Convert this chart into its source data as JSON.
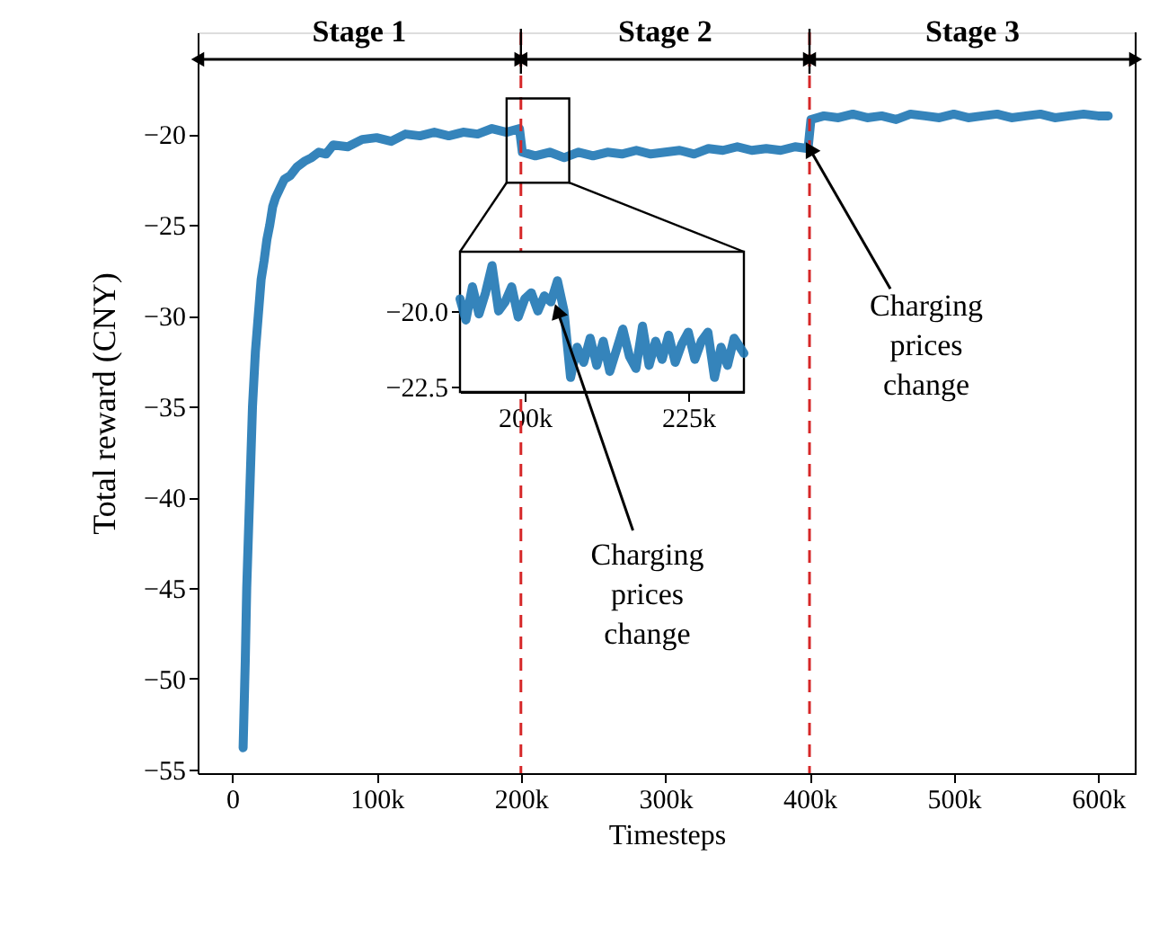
{
  "chart_data": [
    {
      "type": "line",
      "xlabel": "Timesteps",
      "ylabel": "Total reward (CNY)",
      "color": "#1f77b4",
      "line_style": "solid",
      "grid": false,
      "x": [
        7500,
        9000,
        10000,
        12000,
        14000,
        16000,
        18000,
        20000,
        22000,
        24000,
        26000,
        28000,
        30000,
        33000,
        36000,
        40000,
        45000,
        50000,
        55000,
        60000,
        65000,
        70000,
        80000,
        90000,
        100000,
        110000,
        120000,
        130000,
        140000,
        150000,
        160000,
        170000,
        180000,
        190000,
        199000,
        201000,
        210000,
        220000,
        230000,
        240000,
        250000,
        260000,
        270000,
        280000,
        290000,
        300000,
        310000,
        320000,
        330000,
        340000,
        350000,
        360000,
        370000,
        380000,
        390000,
        399000,
        401000,
        410000,
        420000,
        430000,
        440000,
        450000,
        460000,
        470000,
        480000,
        490000,
        500000,
        510000,
        520000,
        530000,
        540000,
        550000,
        560000,
        570000,
        580000,
        590000,
        600000,
        607000
      ],
      "values": [
        -53.8,
        -49,
        -45,
        -40,
        -35,
        -32,
        -30,
        -28,
        -27,
        -25.8,
        -25,
        -24,
        -23.5,
        -23,
        -22.5,
        -22.3,
        -21.8,
        -21.5,
        -21.3,
        -21,
        -21.1,
        -20.6,
        -20.7,
        -20.3,
        -20.2,
        -20.4,
        -20.0,
        -20.1,
        -19.9,
        -20.1,
        -19.9,
        -20.0,
        -19.7,
        -19.9,
        -19.7,
        -21.0,
        -21.2,
        -21.0,
        -21.3,
        -21.0,
        -21.2,
        -21.0,
        -21.1,
        -20.9,
        -21.1,
        -21.0,
        -20.9,
        -21.1,
        -20.8,
        -20.9,
        -20.7,
        -20.9,
        -20.8,
        -20.9,
        -20.7,
        -20.8,
        -19.2,
        -19.0,
        -19.1,
        -18.9,
        -19.1,
        -19.0,
        -19.2,
        -18.9,
        -19.0,
        -19.1,
        -18.9,
        -19.1,
        -19.0,
        -18.9,
        -19.1,
        -19.0,
        -18.9,
        -19.1,
        -19.0,
        -18.9,
        -19.0,
        -19.0
      ],
      "xlim": [
        -24000,
        626000
      ],
      "ylim": [
        -55.2,
        -14.4
      ],
      "xticks": [
        0,
        {
          "value": 100000,
          "label": "100k"
        },
        {
          "value": 200000,
          "label": "200k"
        },
        {
          "value": 300000,
          "label": "300k"
        },
        {
          "value": 400000,
          "label": "400k"
        },
        {
          "value": 500000,
          "label": "500k"
        },
        {
          "value": 600000,
          "label": "600k"
        }
      ],
      "yticks": [
        -55,
        -50,
        -45,
        -40,
        -35,
        -30,
        -25,
        -20
      ],
      "ref_lines": [
        {
          "axis": "x",
          "value": 200000,
          "color": "#d62728",
          "line_style": "dashed"
        },
        {
          "axis": "x",
          "value": 400000,
          "color": "#d62728",
          "line_style": "dashed"
        }
      ],
      "annotations": [
        "Stage 1",
        "Stage 2",
        "Stage 3",
        {
          "text": "Charging prices change",
          "x": 400000,
          "y": -20.8
        }
      ]
    },
    {
      "type": "line",
      "color": "#1f77b4",
      "line_style": "solid",
      "grid": false,
      "x": [
        190100,
        191000,
        192000,
        193000,
        194000,
        195000,
        196000,
        197000,
        198000,
        199000,
        200000,
        201000,
        202000,
        203000,
        204000,
        205000,
        206000,
        207000,
        208000,
        209000,
        210000,
        211000,
        212000,
        213000,
        214000,
        215000,
        216000,
        217000,
        218000,
        219000,
        220000,
        221000,
        222000,
        223000,
        224000,
        225000,
        226000,
        227000,
        228000,
        229000,
        230000,
        231000,
        232000,
        233500
      ],
      "values": [
        -19.6,
        -20.3,
        -19.2,
        -20.1,
        -19.4,
        -18.5,
        -20.0,
        -19.7,
        -19.2,
        -20.2,
        -19.6,
        -19.4,
        -20.0,
        -19.5,
        -19.7,
        -19.0,
        -20.0,
        -22.2,
        -21.2,
        -21.7,
        -20.9,
        -21.8,
        -21.0,
        -22.0,
        -21.3,
        -20.6,
        -21.5,
        -21.9,
        -20.5,
        -21.8,
        -21.0,
        -21.6,
        -20.8,
        -21.7,
        -21.1,
        -20.7,
        -21.6,
        -21.0,
        -20.7,
        -22.2,
        -21.2,
        -21.8,
        -20.9,
        -21.4
      ],
      "xlim": [
        190100,
        233500
      ],
      "ylim": [
        -22.68,
        -18.04
      ],
      "xticks": [
        {
          "value": 200000,
          "label": "200k"
        },
        {
          "value": 225000,
          "label": "225k"
        }
      ],
      "yticks": [
        {
          "value": -20,
          "label": "−20.0"
        },
        {
          "value": -22.5,
          "label": "−22.5"
        }
      ],
      "annotations": [
        {
          "text": "Charging prices change",
          "x": 205000,
          "y": -20.0
        }
      ]
    }
  ]
}
